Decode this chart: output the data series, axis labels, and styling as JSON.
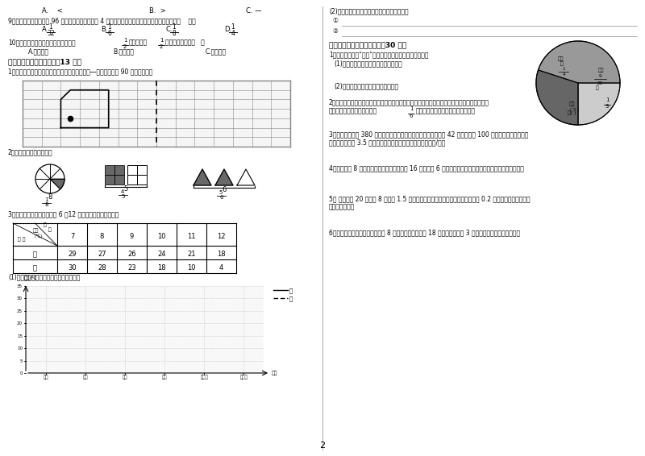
{
  "bg_color": "#ffffff",
  "page_num": "2",
  "left": {
    "jia_temps": [
      29,
      27,
      26,
      24,
      21,
      18
    ],
    "yi_temps": [
      30,
      28,
      23,
      18,
      10,
      4
    ],
    "yticks": [
      0,
      5,
      10,
      15,
      20,
      25,
      30,
      35
    ],
    "month_labels": [
      "七月",
      "八月",
      "九月",
      "十月",
      "十一月",
      "十二月"
    ]
  }
}
